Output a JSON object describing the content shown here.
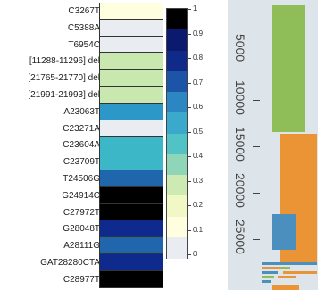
{
  "mutations": [
    {
      "label": "C3267T",
      "value": 0.06
    },
    {
      "label": "C5388A",
      "value": 0.0
    },
    {
      "label": "T6954C",
      "value": 0.0
    },
    {
      "label": "[11288-11296] del",
      "value": 0.32
    },
    {
      "label": "[21765-21770] del",
      "value": 0.3
    },
    {
      "label": "[21991-21993] del",
      "value": 0.3
    },
    {
      "label": "A23063T",
      "value": 0.58
    },
    {
      "label": "C23271A",
      "value": 0.02
    },
    {
      "label": "C23604A",
      "value": 0.5
    },
    {
      "label": "C23709T",
      "value": 0.52
    },
    {
      "label": "T24506G",
      "value": 0.68
    },
    {
      "label": "G24914C",
      "value": 1.0
    },
    {
      "label": "C27972T",
      "value": 1.0
    },
    {
      "label": "G28048T",
      "value": 0.86
    },
    {
      "label": "A28111G",
      "value": 0.68
    },
    {
      "label": "GAT28280CTA",
      "value": 0.86
    },
    {
      "label": "C28977T",
      "value": 1.0
    }
  ],
  "colorbar": {
    "ticks": [
      "1",
      "0.9",
      "0.8",
      "0.7",
      "0.6",
      "0.5",
      "0.4",
      "0.3",
      "0.2",
      "0.1",
      "0"
    ],
    "colors": [
      "#000000",
      "#0b1a6e",
      "#102a8a",
      "#1c55a8",
      "#2b86c2",
      "#3aa9cb",
      "#51c2c5",
      "#8fd5b8",
      "#cdeab2",
      "#f2f7c6",
      "#ffffe0",
      "#e9edf1"
    ]
  },
  "right_panel": {
    "axis_ticks": [
      "5000",
      "10000",
      "15000",
      "20000",
      "25000"
    ],
    "colors": {
      "green": "#8fbe58",
      "orange": "#ea9435",
      "blue": "#4a8fbd",
      "background": "#dde4ea"
    }
  }
}
